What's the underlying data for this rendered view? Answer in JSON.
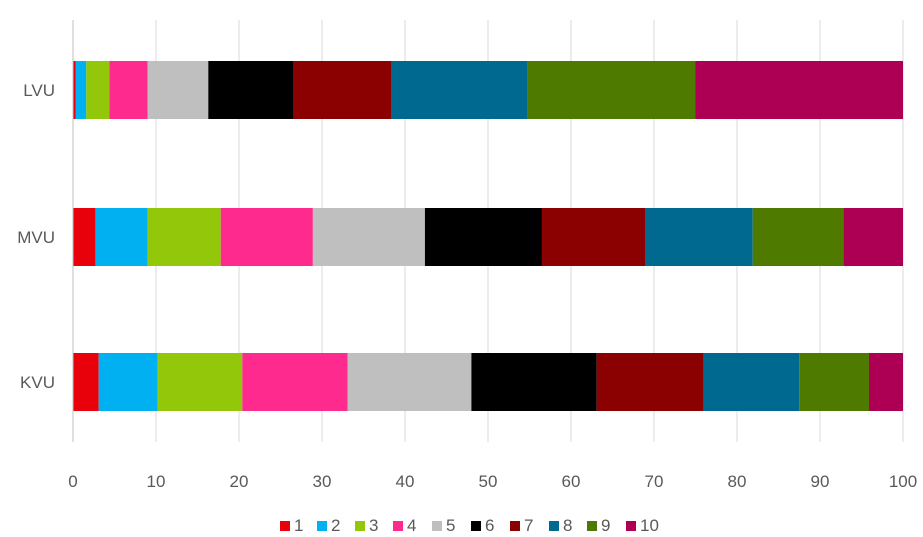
{
  "chart_data": {
    "type": "bar",
    "orientation": "horizontal",
    "stacked": true,
    "title": "",
    "xlabel": "",
    "ylabel": "",
    "xlim": [
      0,
      100
    ],
    "xticks": [
      0,
      10,
      20,
      30,
      40,
      50,
      60,
      70,
      80,
      90,
      100
    ],
    "grid": "vertical",
    "legend": "bottom",
    "categories": [
      "LVU",
      "MVU",
      "KVU"
    ],
    "series": [
      {
        "name": "1",
        "color": "#e8000b",
        "values": [
          0.3,
          2.7,
          3.1
        ]
      },
      {
        "name": "2",
        "color": "#00b0f0",
        "values": [
          1.3,
          6.3,
          7.1
        ]
      },
      {
        "name": "3",
        "color": "#92c70a",
        "values": [
          2.8,
          8.8,
          10.2
        ]
      },
      {
        "name": "4",
        "color": "#ff2a8d",
        "values": [
          4.6,
          11.1,
          12.7
        ]
      },
      {
        "name": "5",
        "color": "#bfbfbf",
        "values": [
          7.3,
          13.5,
          14.9
        ]
      },
      {
        "name": "6",
        "color": "#000000",
        "values": [
          10.3,
          14.1,
          15.1
        ]
      },
      {
        "name": "7",
        "color": "#8b0000",
        "values": [
          11.8,
          12.5,
          12.9
        ]
      },
      {
        "name": "8",
        "color": "#006990",
        "values": [
          16.4,
          12.9,
          11.5
        ]
      },
      {
        "name": "9",
        "color": "#4f7a00",
        "values": [
          20.2,
          10.9,
          8.4
        ]
      },
      {
        "name": "10",
        "color": "#ad0055",
        "values": [
          25.0,
          7.2,
          4.1
        ]
      }
    ]
  }
}
